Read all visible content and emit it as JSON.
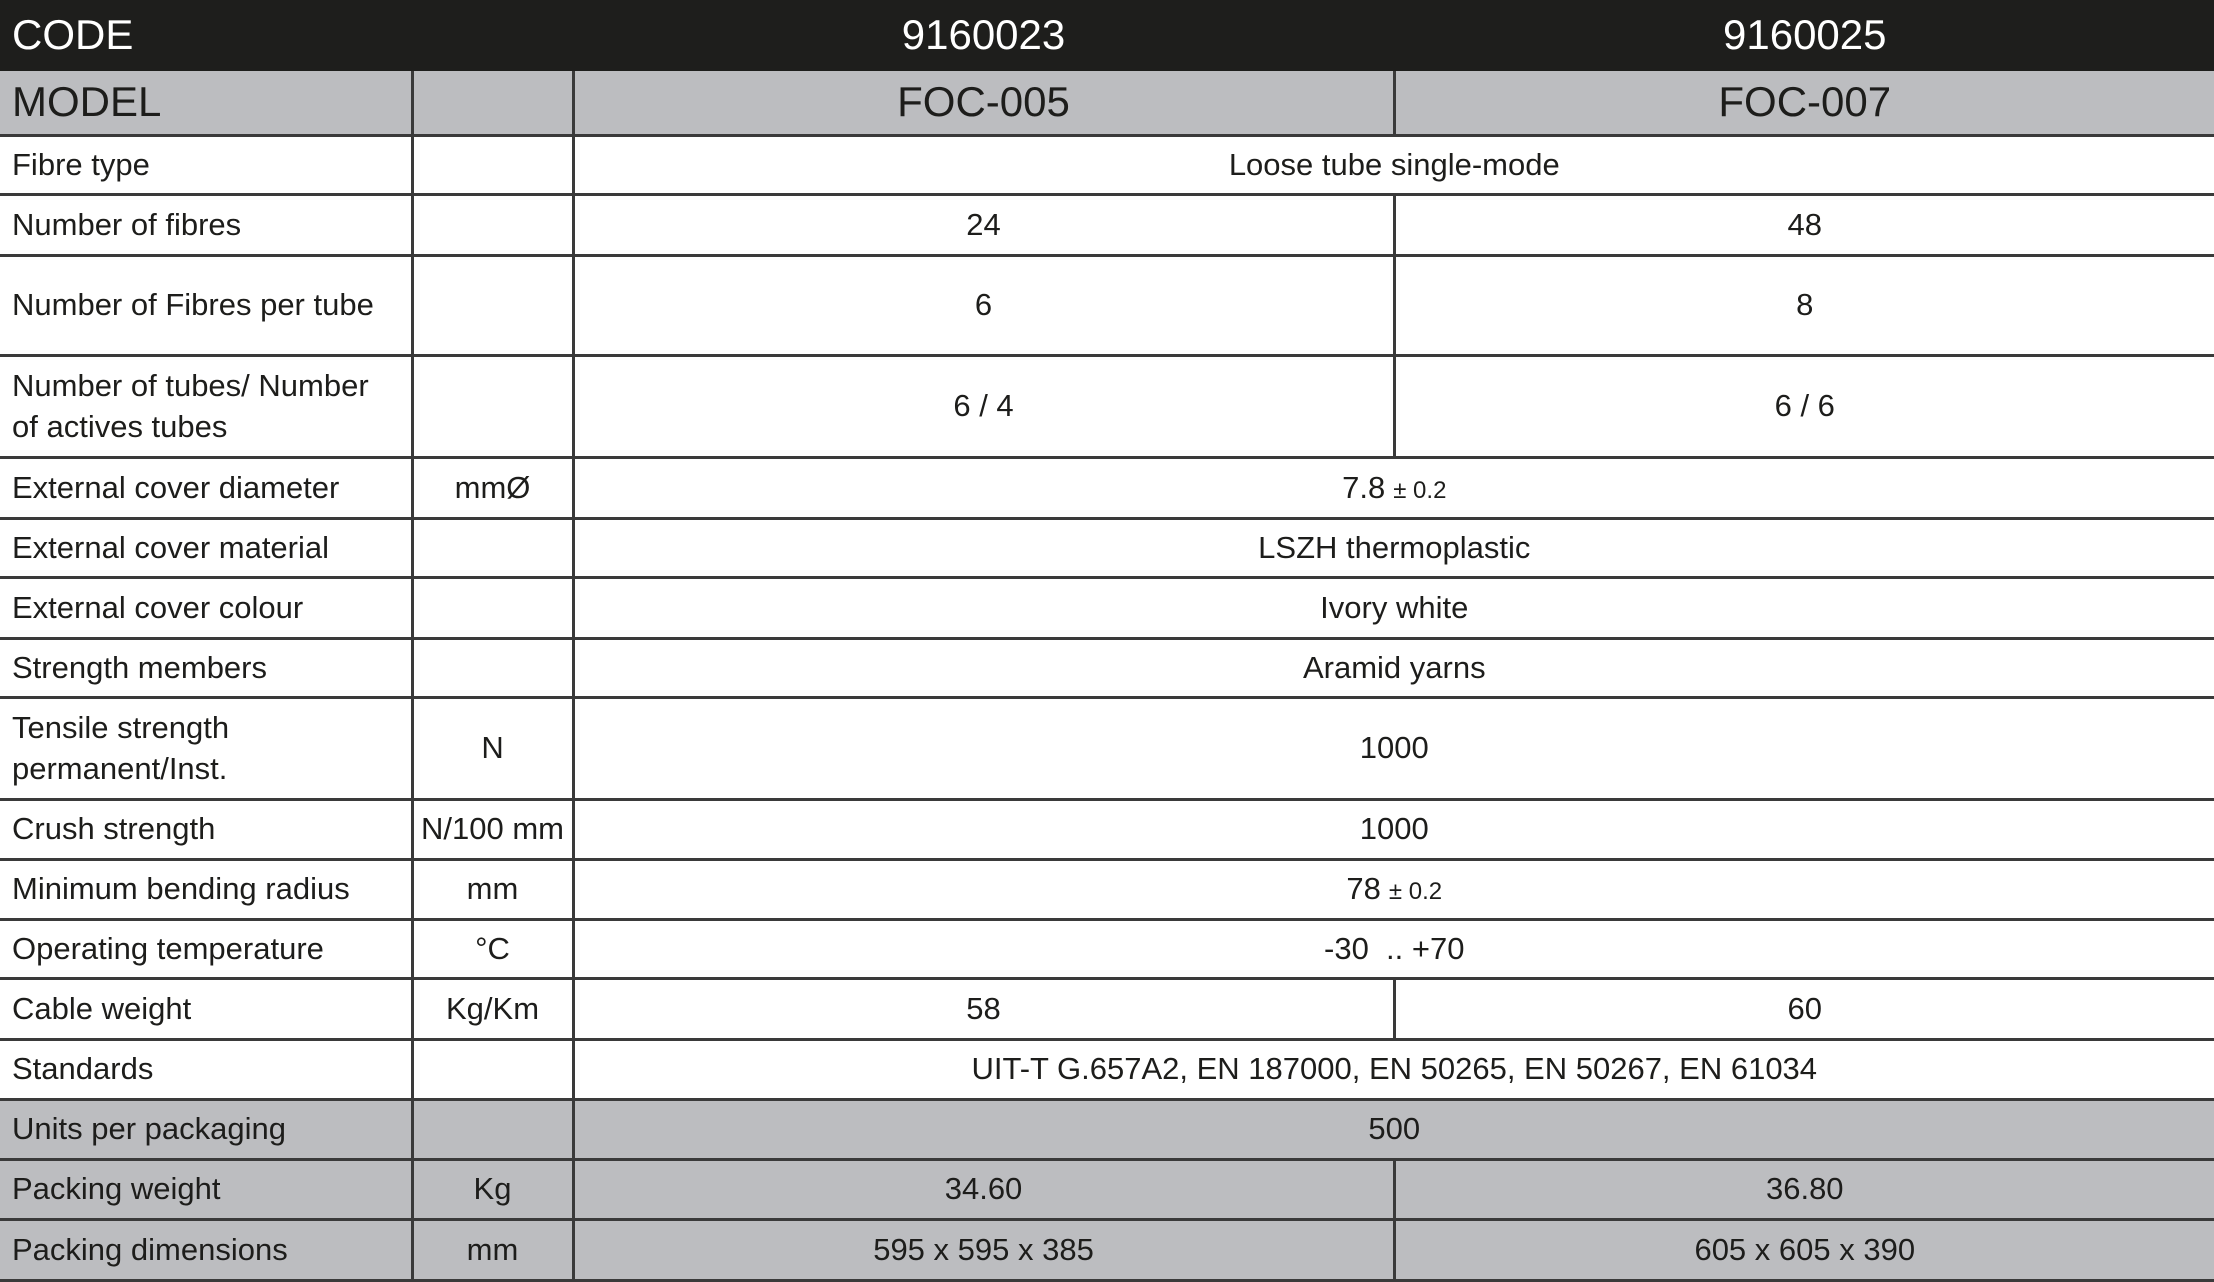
{
  "header": {
    "label": "CODE",
    "codes": [
      "9160023",
      "9160025"
    ]
  },
  "model_row": {
    "label": "MODEL",
    "unit": "",
    "models": [
      "FOC-005",
      "FOC-007"
    ]
  },
  "rows": [
    {
      "label": "Fibre type",
      "unit": "",
      "values": [
        "Loose tube single-mode"
      ]
    },
    {
      "label": "Number of fibres",
      "unit": "",
      "values": [
        "24",
        "48"
      ]
    },
    {
      "label": "Number of Fibres per tube",
      "unit": "",
      "values": [
        "6",
        "8"
      ]
    },
    {
      "label": "Number of tubes/ Number of actives tubes",
      "unit": "",
      "values": [
        "6 / 4",
        "6 / 6"
      ]
    },
    {
      "label": "External cover diameter",
      "unit": "mmØ",
      "values": [
        "7.8"
      ],
      "tolerance": "± 0.2"
    },
    {
      "label": "External cover material",
      "unit": "",
      "values": [
        "LSZH thermoplastic"
      ]
    },
    {
      "label": "External cover colour",
      "unit": "",
      "values": [
        "Ivory white"
      ]
    },
    {
      "label": "Strength members",
      "unit": "",
      "values": [
        "Aramid yarns"
      ]
    },
    {
      "label": "Tensile strength permanent/Inst.",
      "unit": "N",
      "values": [
        "1000"
      ]
    },
    {
      "label": "Crush strength",
      "unit": "N/100 mm",
      "values": [
        "1000"
      ]
    },
    {
      "label": "Minimum bending radius",
      "unit": "mm",
      "values": [
        "78"
      ],
      "tolerance": "± 0.2"
    },
    {
      "label": "Operating temperature",
      "unit": "°C",
      "values": [
        "-30  .. +70"
      ]
    },
    {
      "label": "Cable weight",
      "unit": "Kg/Km",
      "values": [
        "58",
        "60"
      ]
    },
    {
      "label": "Standards",
      "unit": "",
      "values": [
        "UIT-T G.657A2, EN 187000, EN 50265, EN 50267, EN 61034"
      ]
    },
    {
      "label": "Units per packaging",
      "unit": "",
      "values": [
        "500"
      ],
      "shaded": true
    },
    {
      "label": "Packing weight",
      "unit": "Kg",
      "values": [
        "34.60",
        "36.80"
      ],
      "shaded": true
    },
    {
      "label": "Packing dimensions",
      "unit": "mm",
      "values": [
        "595 x 595 x 385",
        "605 x 605 x 390"
      ],
      "shaded": true
    }
  ],
  "colors": {
    "header_bg": "#1e1e1c",
    "shaded_bg": "#bcbdc0"
  }
}
